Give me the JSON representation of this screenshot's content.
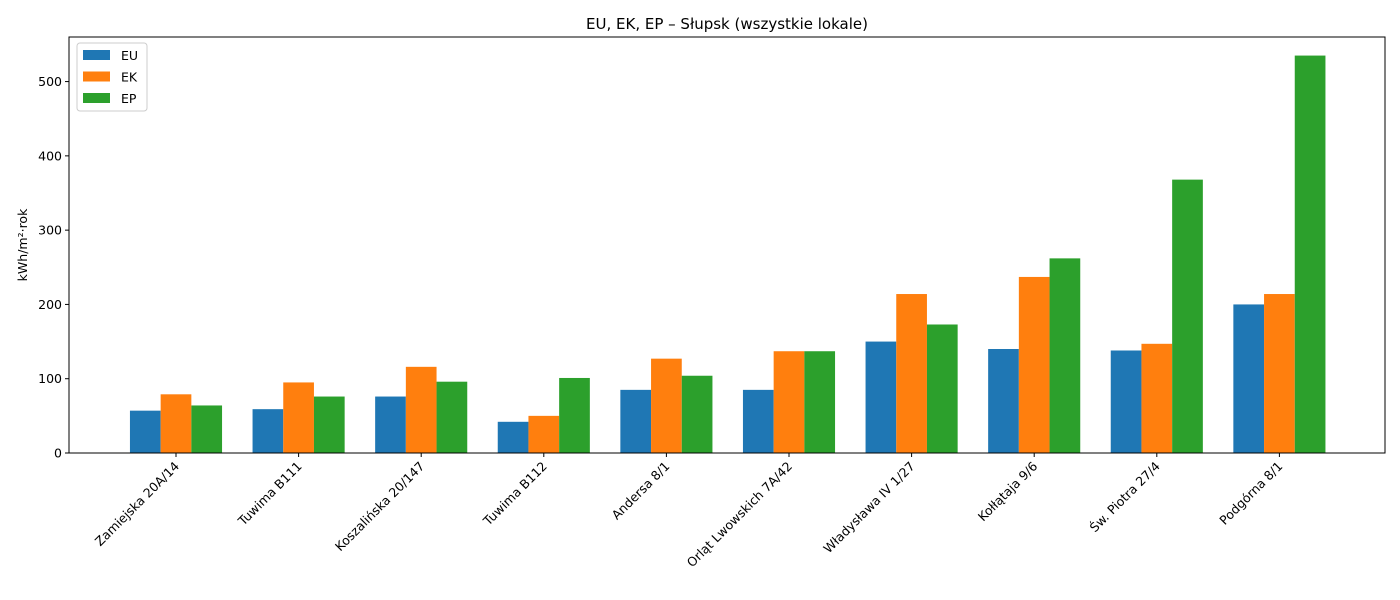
{
  "chart_data": {
    "type": "bar",
    "title": "EU, EK, EP – Słupsk (wszystkie lokale)",
    "xlabel": "",
    "ylabel": "kWh/m²·rok",
    "ylim": [
      0,
      560
    ],
    "yticks": [
      0,
      100,
      200,
      300,
      400,
      500
    ],
    "grid": false,
    "legend_position": "top-left",
    "categories": [
      "Zamiejska 20A/14",
      "Tuwima B111",
      "Koszalińska 20/147",
      "Tuwima B112",
      "Andersa 8/1",
      "Orląt Lwowskich 7A/42",
      "Władysława IV 1/27",
      "Kołłątaja 9/6",
      "Św. Piotra 27/4",
      "Podgórna 8/1"
    ],
    "series": [
      {
        "name": "EU",
        "color": "#1f77b4",
        "values": [
          57,
          59,
          76,
          42,
          85,
          85,
          150,
          140,
          138,
          200
        ]
      },
      {
        "name": "EK",
        "color": "#ff7f0e",
        "values": [
          79,
          95,
          116,
          50,
          127,
          137,
          214,
          237,
          147,
          214
        ]
      },
      {
        "name": "EP",
        "color": "#2ca02c",
        "values": [
          64,
          76,
          96,
          101,
          104,
          137,
          173,
          262,
          368,
          535
        ]
      }
    ]
  }
}
